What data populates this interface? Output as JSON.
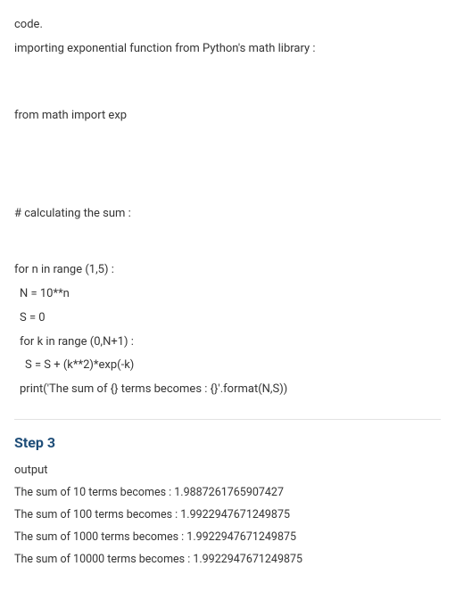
{
  "intro": {
    "line1": "code.",
    "line2": "importing exponential function from Python's math library :"
  },
  "code": {
    "import_line": "from math import exp",
    "comment_line": "# calculating the sum :",
    "loop_outer": "for n in range (1,5) :",
    "assign_N": "N = 10**n",
    "assign_S": "S = 0",
    "loop_inner": "for k in range (0,N+1) :",
    "sum_update": "S = S + (k**2)*exp(-k)",
    "print_line": "print('The sum of {} terms becomes : {}'.format(N,S))"
  },
  "step": {
    "heading": "Step 3",
    "output_label": "output",
    "results": [
      "The sum of 10 terms becomes : 1.9887261765907427",
      "The sum of 100 terms becomes : 1.9922947671249875",
      "The sum of 1000 terms becomes : 1.9922947671249875",
      "The sum of 10000 terms becomes : 1.9922947671249875"
    ]
  },
  "colors": {
    "text": "#353535",
    "heading": "#1f4e79",
    "divider": "#e3e3e3",
    "background": "#ffffff"
  },
  "typography": {
    "body_fontsize_pt": 10,
    "heading_fontsize_pt": 12,
    "heading_weight": 700
  }
}
